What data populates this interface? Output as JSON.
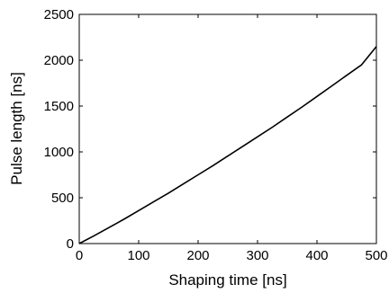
{
  "chart_data": {
    "type": "line",
    "title": "",
    "xlabel": "Shaping time [ns]",
    "ylabel": "Pulse length [ns]",
    "xlim": [
      0,
      500
    ],
    "ylim": [
      0,
      2500
    ],
    "x_ticks": [
      0,
      100,
      200,
      300,
      400,
      500
    ],
    "y_ticks": [
      0,
      500,
      1000,
      1500,
      2000,
      2500
    ],
    "grid": false,
    "legend": "none",
    "line_color": "#000000",
    "series": [
      {
        "x": [
          0,
          25,
          50,
          75,
          100,
          125,
          150,
          175,
          200,
          225,
          250,
          275,
          300,
          325,
          350,
          375,
          400,
          425,
          450,
          475,
          500
        ],
        "y": [
          0,
          85,
          175,
          265,
          360,
          455,
          550,
          650,
          750,
          850,
          955,
          1060,
          1165,
          1270,
          1380,
          1490,
          1605,
          1720,
          1835,
          1950,
          2150
        ]
      }
    ]
  }
}
